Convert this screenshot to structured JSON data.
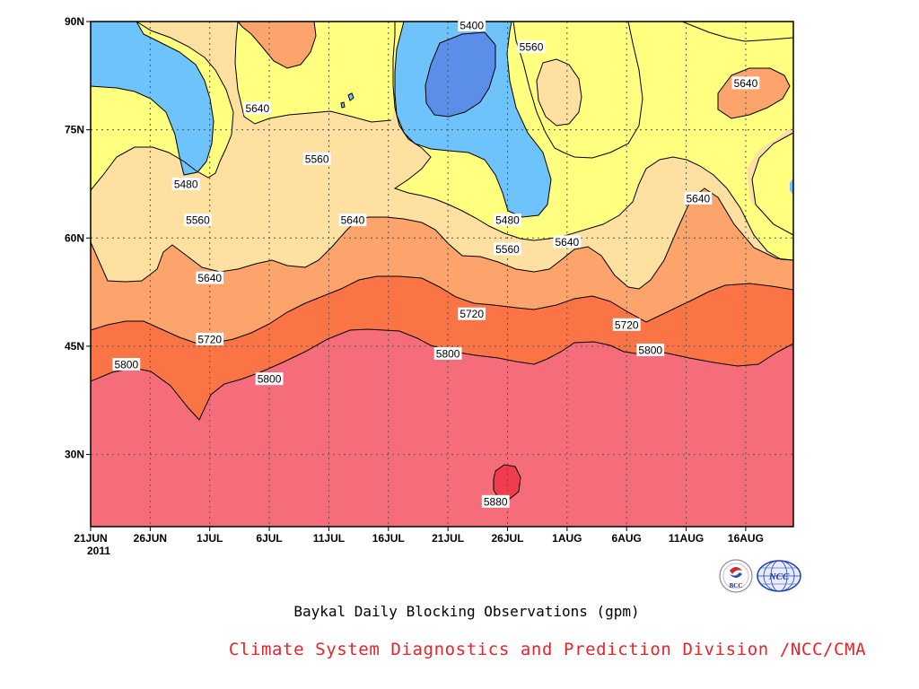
{
  "chart_data": {
    "type": "contour",
    "title": "Baykal Daily Blocking Observations (gpm)",
    "source": "Climate System Diagnostics and Prediction Division /NCC/CMA",
    "x_tick_labels": [
      "21JUN",
      "26JUN",
      "1JUL",
      "6JUL",
      "11JUL",
      "16JUL",
      "21JUL",
      "26JUL",
      "1AUG",
      "6AUG",
      "11AUG",
      "16AUG"
    ],
    "x_year_label": "2011",
    "x_range": [
      "2011-06-21",
      "2011-08-19"
    ],
    "y_tick_labels": [
      "30N",
      "45N",
      "60N",
      "75N",
      "90N"
    ],
    "y_tick_values": [
      30,
      45,
      60,
      75,
      90
    ],
    "y_range": [
      20,
      90
    ],
    "levels": [
      5400,
      5480,
      5560,
      5640,
      5720,
      5800,
      5880
    ],
    "fill_colors": {
      "lt5400": "#4a86e4",
      "5400": "#5a8ee8",
      "5480": "#6ec3fb",
      "5560": "#ffff80",
      "5640": "#fee1a0",
      "5720": "#fda46c",
      "5800": "#fb7445",
      "5880": "#f56d7a",
      "gt5880": "#ef3d4d"
    },
    "contour_labels": [
      {
        "value": "5400",
        "date": "2011-07-23",
        "lat": 89.5
      },
      {
        "value": "5560",
        "date": "2011-07-28",
        "lat": 86.5
      },
      {
        "value": "5640",
        "date": "2011-08-15",
        "lat": 81.5
      },
      {
        "value": "5640",
        "date": "2011-07-05",
        "lat": 78
      },
      {
        "value": "5560",
        "date": "2011-07-10",
        "lat": 71
      },
      {
        "value": "5480",
        "date": "2011-06-29",
        "lat": 67.5
      },
      {
        "value": "5640",
        "date": "2011-08-11",
        "lat": 65.5
      },
      {
        "value": "5560",
        "date": "2011-06-30",
        "lat": 62.5
      },
      {
        "value": "5640",
        "date": "2011-07-13",
        "lat": 62.5
      },
      {
        "value": "5480",
        "date": "2011-07-26",
        "lat": 62.5
      },
      {
        "value": "5640",
        "date": "2011-07-31",
        "lat": 59.5
      },
      {
        "value": "5560",
        "date": "2011-07-26",
        "lat": 58.5
      },
      {
        "value": "5640",
        "date": "2011-07-01",
        "lat": 54.5
      },
      {
        "value": "5720",
        "date": "2011-07-23",
        "lat": 49.5
      },
      {
        "value": "5720",
        "date": "2011-08-05",
        "lat": 48
      },
      {
        "value": "5720",
        "date": "2011-07-01",
        "lat": 46
      },
      {
        "value": "5800",
        "date": "2011-07-21",
        "lat": 44
      },
      {
        "value": "5800",
        "date": "2011-08-07",
        "lat": 44.5
      },
      {
        "value": "5800",
        "date": "2011-06-24",
        "lat": 42.5
      },
      {
        "value": "5800",
        "date": "2011-07-06",
        "lat": 40.5
      },
      {
        "value": "5880",
        "date": "2011-07-25",
        "lat": 23.5
      }
    ]
  },
  "logos": {
    "bcc": "BCC",
    "ncc": "NCC"
  }
}
